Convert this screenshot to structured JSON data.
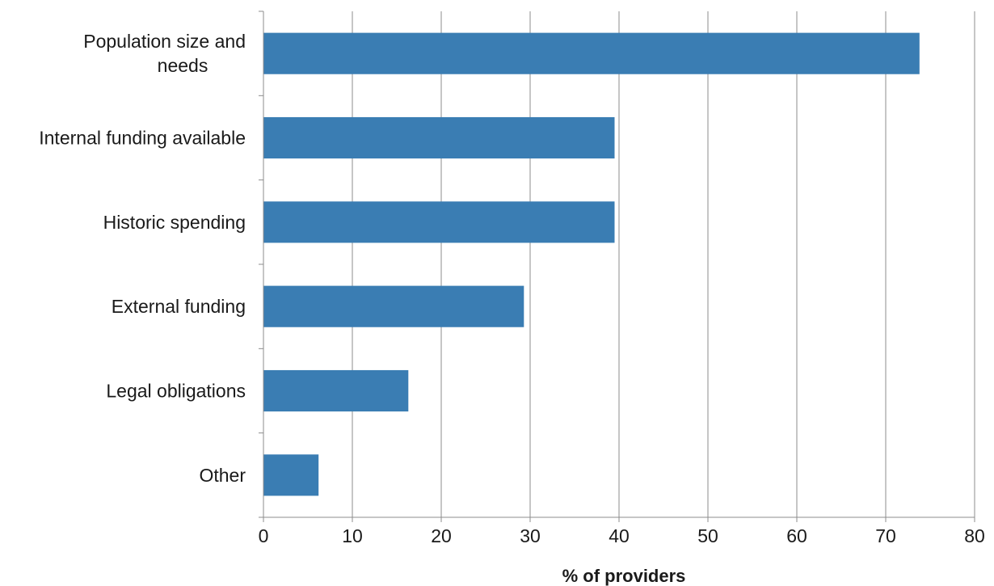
{
  "chart_data": {
    "type": "bar",
    "orientation": "horizontal",
    "categories": [
      "Population size and needs",
      "Internal funding available",
      "Historic spending",
      "External funding",
      "Legal obligations",
      "Other"
    ],
    "category_lines": [
      [
        "Population size and",
        "needs"
      ],
      [
        "Internal funding available"
      ],
      [
        "Historic spending"
      ],
      [
        "External funding"
      ],
      [
        "Legal obligations"
      ],
      [
        "Other"
      ]
    ],
    "values": [
      73.8,
      39.5,
      39.5,
      29.3,
      16.3,
      6.2
    ],
    "title": "",
    "xlabel": "% of providers",
    "ylabel": "",
    "xlim": [
      0,
      80
    ],
    "xticks": [
      "0",
      "10",
      "20",
      "30",
      "40",
      "50",
      "60",
      "70",
      "80"
    ],
    "grid": "vertical",
    "legend": "none",
    "colors": {
      "bar": "#3a7db3",
      "grid": "#8c8c8c",
      "text": "#1a1a1a"
    }
  }
}
